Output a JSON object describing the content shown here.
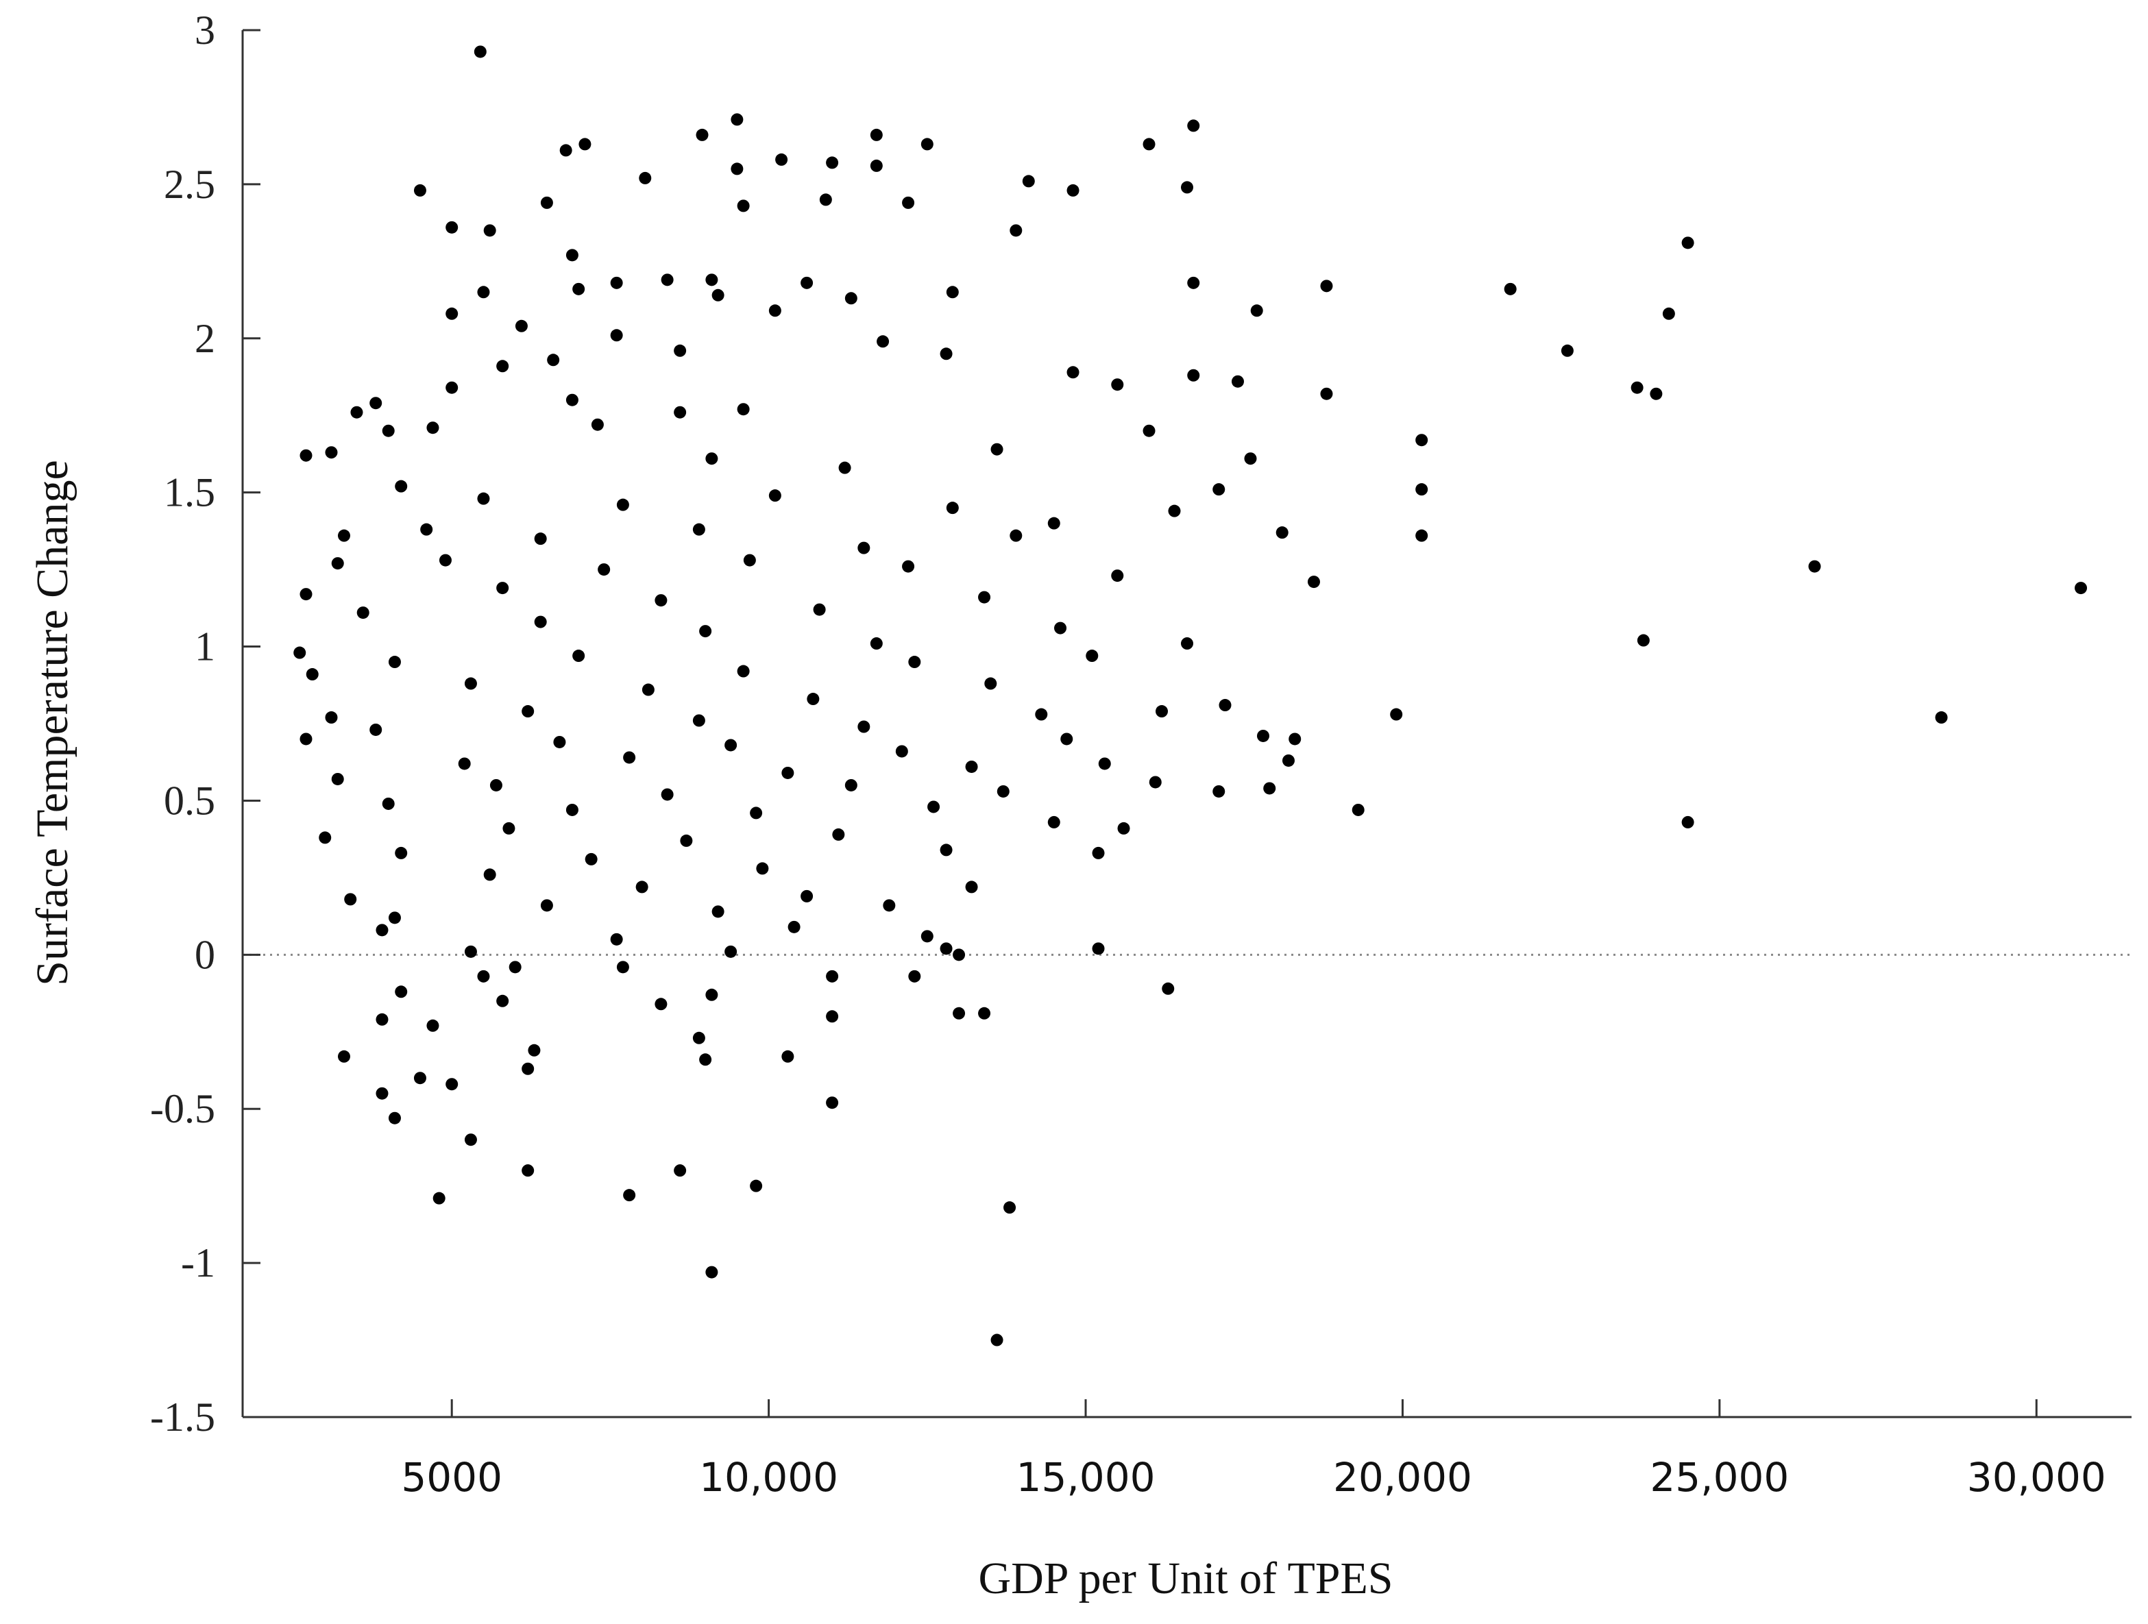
{
  "chart_data": {
    "type": "scatter",
    "xlabel": "GDP per Unit of TPES",
    "ylabel": "Surface Temperature Change",
    "xlim": [
      1700,
      31500
    ],
    "ylim": [
      -1.5,
      3
    ],
    "x_ticks": [
      {
        "value": 5000,
        "label": "5000"
      },
      {
        "value": 10000,
        "label": "10,000"
      },
      {
        "value": 15000,
        "label": "15,000"
      },
      {
        "value": 20000,
        "label": "20,000"
      },
      {
        "value": 25000,
        "label": "25,000"
      },
      {
        "value": 30000,
        "label": "30,000"
      }
    ],
    "y_ticks": [
      {
        "value": 3,
        "label": "3"
      },
      {
        "value": 2.5,
        "label": "2.5"
      },
      {
        "value": 2,
        "label": "2"
      },
      {
        "value": 1.5,
        "label": "1.5"
      },
      {
        "value": 1,
        "label": "1"
      },
      {
        "value": 0.5,
        "label": "0.5"
      },
      {
        "value": 0,
        "label": "0"
      },
      {
        "value": -0.5,
        "label": "-0.5"
      },
      {
        "value": -1,
        "label": "-1"
      },
      {
        "value": -1.5,
        "label": "-1.5"
      }
    ],
    "reference_line_y": 0,
    "grid": false,
    "marker_color": "#000000",
    "points": [
      [
        5450,
        2.93
      ],
      [
        9500,
        2.71
      ],
      [
        16700,
        2.69
      ],
      [
        11700,
        2.66
      ],
      [
        8950,
        2.66
      ],
      [
        6800,
        2.61
      ],
      [
        7100,
        2.63
      ],
      [
        12500,
        2.63
      ],
      [
        16000,
        2.63
      ],
      [
        10200,
        2.58
      ],
      [
        11000,
        2.57
      ],
      [
        9500,
        2.55
      ],
      [
        11700,
        2.56
      ],
      [
        8050,
        2.52
      ],
      [
        14100,
        2.51
      ],
      [
        4500,
        2.48
      ],
      [
        14800,
        2.48
      ],
      [
        16600,
        2.49
      ],
      [
        6500,
        2.44
      ],
      [
        9600,
        2.43
      ],
      [
        10900,
        2.45
      ],
      [
        12200,
        2.44
      ],
      [
        5000,
        2.36
      ],
      [
        5600,
        2.35
      ],
      [
        13900,
        2.35
      ],
      [
        24500,
        2.31
      ],
      [
        6900,
        2.27
      ],
      [
        8400,
        2.19
      ],
      [
        9100,
        2.19
      ],
      [
        10600,
        2.18
      ],
      [
        7600,
        2.18
      ],
      [
        7000,
        2.16
      ],
      [
        12900,
        2.15
      ],
      [
        16700,
        2.18
      ],
      [
        18800,
        2.17
      ],
      [
        21700,
        2.16
      ],
      [
        5500,
        2.15
      ],
      [
        9200,
        2.14
      ],
      [
        11300,
        2.13
      ],
      [
        17700,
        2.09
      ],
      [
        24200,
        2.08
      ],
      [
        5000,
        2.08
      ],
      [
        6100,
        2.04
      ],
      [
        10100,
        2.09
      ],
      [
        7600,
        2.01
      ],
      [
        8600,
        1.96
      ],
      [
        11800,
        1.99
      ],
      [
        12800,
        1.95
      ],
      [
        22600,
        1.96
      ],
      [
        5800,
        1.91
      ],
      [
        14800,
        1.89
      ],
      [
        16700,
        1.88
      ],
      [
        6600,
        1.93
      ],
      [
        17400,
        1.86
      ],
      [
        15500,
        1.85
      ],
      [
        23700,
        1.84
      ],
      [
        24000,
        1.82
      ],
      [
        5000,
        1.84
      ],
      [
        3800,
        1.79
      ],
      [
        6900,
        1.8
      ],
      [
        18800,
        1.82
      ],
      [
        9600,
        1.77
      ],
      [
        3500,
        1.76
      ],
      [
        8600,
        1.76
      ],
      [
        4700,
        1.71
      ],
      [
        7300,
        1.72
      ],
      [
        20300,
        1.67
      ],
      [
        16000,
        1.7
      ],
      [
        4000,
        1.7
      ],
      [
        2700,
        1.62
      ],
      [
        3100,
        1.63
      ],
      [
        13600,
        1.64
      ],
      [
        17600,
        1.61
      ],
      [
        9100,
        1.61
      ],
      [
        11200,
        1.58
      ],
      [
        4200,
        1.52
      ],
      [
        20300,
        1.51
      ],
      [
        17100,
        1.51
      ],
      [
        5500,
        1.48
      ],
      [
        7700,
        1.46
      ],
      [
        10100,
        1.49
      ],
      [
        12900,
        1.45
      ],
      [
        16400,
        1.44
      ],
      [
        3300,
        1.36
      ],
      [
        20300,
        1.36
      ],
      [
        18100,
        1.37
      ],
      [
        4600,
        1.38
      ],
      [
        6400,
        1.35
      ],
      [
        8900,
        1.38
      ],
      [
        11500,
        1.32
      ],
      [
        13900,
        1.36
      ],
      [
        3200,
        1.27
      ],
      [
        26500,
        1.26
      ],
      [
        14500,
        1.4
      ],
      [
        4900,
        1.28
      ],
      [
        7400,
        1.25
      ],
      [
        9700,
        1.28
      ],
      [
        12200,
        1.26
      ],
      [
        15500,
        1.23
      ],
      [
        18600,
        1.21
      ],
      [
        30700,
        1.19
      ],
      [
        2700,
        1.17
      ],
      [
        5800,
        1.19
      ],
      [
        8300,
        1.15
      ],
      [
        10800,
        1.12
      ],
      [
        13400,
        1.16
      ],
      [
        3600,
        1.11
      ],
      [
        6400,
        1.08
      ],
      [
        9000,
        1.05
      ],
      [
        11700,
        1.01
      ],
      [
        14600,
        1.06
      ],
      [
        16600,
        1.01
      ],
      [
        23800,
        1.02
      ],
      [
        2600,
        0.98
      ],
      [
        4100,
        0.95
      ],
      [
        7000,
        0.97
      ],
      [
        9600,
        0.92
      ],
      [
        12300,
        0.95
      ],
      [
        15100,
        0.97
      ],
      [
        2800,
        0.91
      ],
      [
        5300,
        0.88
      ],
      [
        8100,
        0.86
      ],
      [
        10700,
        0.83
      ],
      [
        13500,
        0.88
      ],
      [
        17200,
        0.81
      ],
      [
        3100,
        0.77
      ],
      [
        6200,
        0.79
      ],
      [
        8900,
        0.76
      ],
      [
        11500,
        0.74
      ],
      [
        14300,
        0.78
      ],
      [
        16200,
        0.79
      ],
      [
        19900,
        0.78
      ],
      [
        28500,
        0.77
      ],
      [
        2700,
        0.7
      ],
      [
        3800,
        0.73
      ],
      [
        6700,
        0.69
      ],
      [
        9400,
        0.68
      ],
      [
        12100,
        0.66
      ],
      [
        14700,
        0.7
      ],
      [
        17800,
        0.71
      ],
      [
        18300,
        0.7
      ],
      [
        5200,
        0.62
      ],
      [
        7800,
        0.64
      ],
      [
        10300,
        0.59
      ],
      [
        13200,
        0.61
      ],
      [
        15300,
        0.62
      ],
      [
        18200,
        0.63
      ],
      [
        3200,
        0.57
      ],
      [
        5700,
        0.55
      ],
      [
        8400,
        0.52
      ],
      [
        11300,
        0.55
      ],
      [
        13700,
        0.53
      ],
      [
        16100,
        0.56
      ],
      [
        17100,
        0.53
      ],
      [
        17900,
        0.54
      ],
      [
        4000,
        0.49
      ],
      [
        6900,
        0.47
      ],
      [
        9800,
        0.46
      ],
      [
        12600,
        0.48
      ],
      [
        15600,
        0.41
      ],
      [
        19300,
        0.47
      ],
      [
        24500,
        0.43
      ],
      [
        3000,
        0.38
      ],
      [
        5900,
        0.41
      ],
      [
        8700,
        0.37
      ],
      [
        11100,
        0.39
      ],
      [
        14500,
        0.43
      ],
      [
        4200,
        0.33
      ],
      [
        7200,
        0.31
      ],
      [
        9900,
        0.28
      ],
      [
        12800,
        0.34
      ],
      [
        15200,
        0.33
      ],
      [
        5600,
        0.26
      ],
      [
        8000,
        0.22
      ],
      [
        10600,
        0.19
      ],
      [
        13200,
        0.22
      ],
      [
        3400,
        0.18
      ],
      [
        6500,
        0.16
      ],
      [
        9200,
        0.14
      ],
      [
        11900,
        0.16
      ],
      [
        3900,
        0.08
      ],
      [
        4100,
        0.12
      ],
      [
        7600,
        0.05
      ],
      [
        10400,
        0.09
      ],
      [
        12500,
        0.06
      ],
      [
        5300,
        0.01
      ],
      [
        9400,
        0.01
      ],
      [
        12800,
        0.02
      ],
      [
        13000,
        0.0
      ],
      [
        15200,
        0.02
      ],
      [
        5500,
        -0.07
      ],
      [
        6000,
        -0.04
      ],
      [
        7700,
        -0.04
      ],
      [
        11000,
        -0.07
      ],
      [
        12300,
        -0.07
      ],
      [
        4200,
        -0.12
      ],
      [
        5800,
        -0.15
      ],
      [
        8300,
        -0.16
      ],
      [
        9100,
        -0.13
      ],
      [
        16300,
        -0.11
      ],
      [
        3900,
        -0.21
      ],
      [
        4700,
        -0.23
      ],
      [
        11000,
        -0.2
      ],
      [
        13000,
        -0.19
      ],
      [
        13400,
        -0.19
      ],
      [
        6300,
        -0.31
      ],
      [
        8900,
        -0.27
      ],
      [
        10300,
        -0.33
      ],
      [
        3300,
        -0.33
      ],
      [
        4500,
        -0.4
      ],
      [
        6200,
        -0.37
      ],
      [
        9000,
        -0.34
      ],
      [
        3900,
        -0.45
      ],
      [
        5000,
        -0.42
      ],
      [
        11000,
        -0.48
      ],
      [
        4100,
        -0.53
      ],
      [
        5300,
        -0.6
      ],
      [
        6200,
        -0.7
      ],
      [
        8600,
        -0.7
      ],
      [
        9800,
        -0.75
      ],
      [
        4800,
        -0.79
      ],
      [
        7800,
        -0.78
      ],
      [
        13800,
        -0.82
      ],
      [
        9100,
        -1.03
      ],
      [
        13600,
        -1.25
      ]
    ]
  }
}
